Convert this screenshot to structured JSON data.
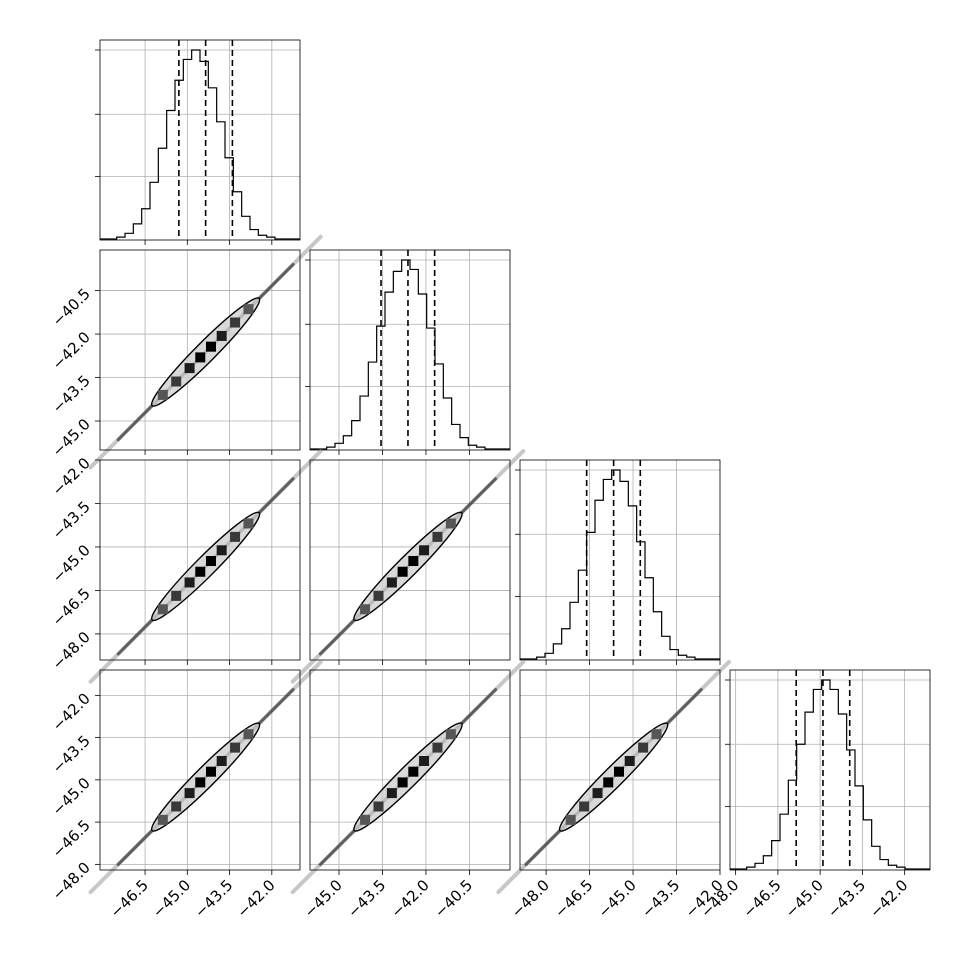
{
  "chart_data": {
    "type": "corner",
    "num_params": 4,
    "colors": {
      "ink": "#000000",
      "grid": "#b0b0b0",
      "contour_fill": "#cfcfcf"
    },
    "grid": true,
    "params": [
      {
        "range": [
          -48.1,
          -41.0
        ],
        "mean": -44.35,
        "q16": -45.3,
        "q50": -44.35,
        "q84": -43.4,
        "ticks": [
          -46.5,
          -45.0,
          -43.5,
          -42.0
        ],
        "tick_labels": [
          "−46.5",
          "−45.0",
          "−43.5",
          "−42.0"
        ]
      },
      {
        "range": [
          -46.0,
          -39.1
        ],
        "mean": -42.62,
        "q16": -43.55,
        "q50": -42.62,
        "q84": -41.7,
        "ticks": [
          -45.0,
          -43.5,
          -42.0,
          -40.5
        ],
        "tick_labels": [
          "−45.0",
          "−43.5",
          "−42.0",
          "−40.5"
        ]
      },
      {
        "range": [
          -48.9,
          -42.0
        ],
        "mean": -45.67,
        "q16": -46.6,
        "q50": -45.67,
        "q84": -44.75,
        "ticks": [
          -48.0,
          -46.5,
          -45.0,
          -43.5,
          -42.0
        ],
        "tick_labels": [
          "−48.0",
          "−46.5",
          "−45.0",
          "−43.5",
          "−42.0"
        ]
      },
      {
        "range": [
          -48.2,
          -41.1
        ],
        "mean": -44.9,
        "q16": -45.85,
        "q50": -44.9,
        "q84": -43.95,
        "ticks": [
          -48.0,
          -46.5,
          -45.0,
          -43.5,
          -42.0
        ],
        "tick_labels": [
          "−48.0",
          "−46.5",
          "−45.0",
          "−43.5",
          "−42.0"
        ]
      }
    ],
    "histograms": [
      [
        0,
        0,
        0.01,
        0.03,
        0.08,
        0.16,
        0.3,
        0.48,
        0.68,
        0.84,
        0.95,
        1.0,
        0.94,
        0.8,
        0.62,
        0.43,
        0.25,
        0.12,
        0.05,
        0.02,
        0.01,
        0,
        0,
        0
      ],
      [
        0,
        0,
        0.01,
        0.03,
        0.07,
        0.15,
        0.28,
        0.46,
        0.65,
        0.83,
        0.94,
        1.0,
        0.95,
        0.82,
        0.64,
        0.45,
        0.27,
        0.13,
        0.06,
        0.02,
        0.01,
        0,
        0,
        0
      ],
      [
        0,
        0,
        0.01,
        0.03,
        0.08,
        0.16,
        0.3,
        0.47,
        0.67,
        0.84,
        0.95,
        1.0,
        0.94,
        0.81,
        0.62,
        0.43,
        0.25,
        0.12,
        0.05,
        0.02,
        0.01,
        0,
        0,
        0
      ],
      [
        0,
        0,
        0.01,
        0.03,
        0.07,
        0.15,
        0.29,
        0.47,
        0.66,
        0.83,
        0.95,
        1.0,
        0.95,
        0.82,
        0.63,
        0.44,
        0.26,
        0.12,
        0.05,
        0.02,
        0.01,
        0,
        0,
        0
      ]
    ],
    "hist_y_ticks": [
      0.33,
      0.66,
      1.0
    ],
    "contour_level_sigma": 2.0,
    "density_cells_sigma": [
      -1.6,
      -1.1,
      -0.6,
      -0.2,
      0.2,
      0.6,
      1.1,
      1.6
    ],
    "density_cell_shades": [
      0.55,
      0.7,
      0.85,
      1.0,
      1.0,
      0.85,
      0.7,
      0.55
    ],
    "tail_extent_sigma": 4.3
  }
}
